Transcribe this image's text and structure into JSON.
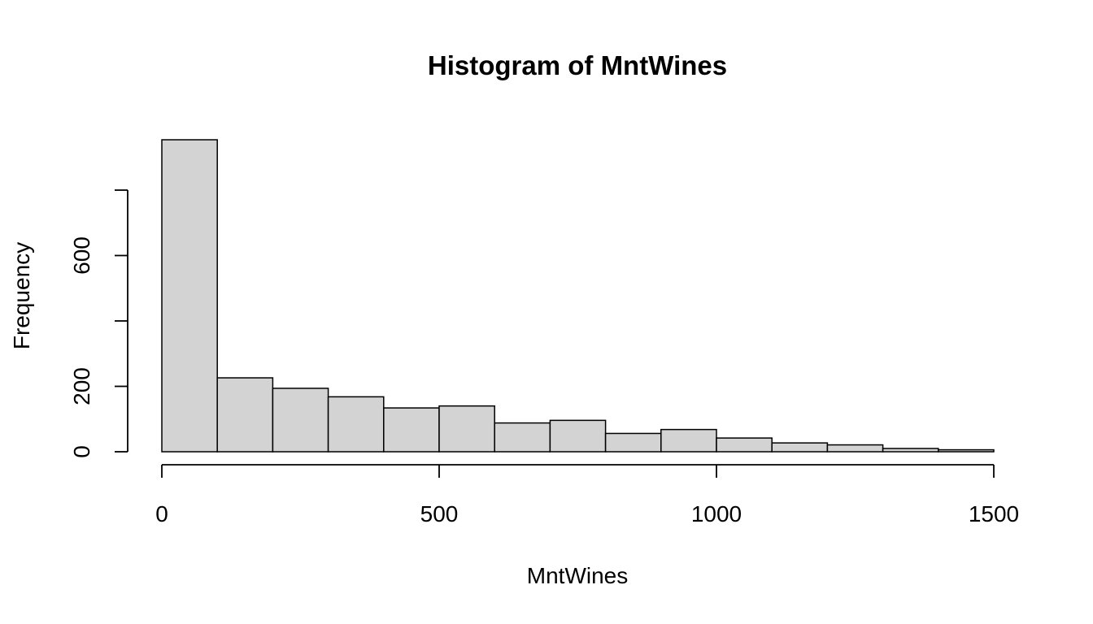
{
  "chart_data": {
    "type": "bar",
    "title": "Histogram of MntWines",
    "xlabel": "MntWines",
    "ylabel": "Frequency",
    "bar_color": "#d3d3d3",
    "border_color": "#000000",
    "bins": [
      {
        "start": 0,
        "end": 100,
        "count": 954
      },
      {
        "start": 100,
        "end": 200,
        "count": 226
      },
      {
        "start": 200,
        "end": 300,
        "count": 194
      },
      {
        "start": 300,
        "end": 400,
        "count": 168
      },
      {
        "start": 400,
        "end": 500,
        "count": 134
      },
      {
        "start": 500,
        "end": 600,
        "count": 140
      },
      {
        "start": 600,
        "end": 700,
        "count": 88
      },
      {
        "start": 700,
        "end": 800,
        "count": 96
      },
      {
        "start": 800,
        "end": 900,
        "count": 56
      },
      {
        "start": 900,
        "end": 1000,
        "count": 68
      },
      {
        "start": 1000,
        "end": 1100,
        "count": 42
      },
      {
        "start": 1100,
        "end": 1200,
        "count": 27
      },
      {
        "start": 1200,
        "end": 1300,
        "count": 21
      },
      {
        "start": 1300,
        "end": 1400,
        "count": 10
      },
      {
        "start": 1400,
        "end": 1500,
        "count": 6
      }
    ],
    "x_ticks": [
      0,
      500,
      1000,
      1500
    ],
    "x_tick_labels": [
      "0",
      "500",
      "1000",
      "1500"
    ],
    "y_ticks": [
      0,
      200,
      400,
      600,
      800
    ],
    "y_tick_labels": [
      "0",
      "200",
      "",
      "600",
      ""
    ],
    "xlim": [
      0,
      1500
    ],
    "ylim": [
      0,
      954
    ],
    "grid": false,
    "legend": "none"
  }
}
